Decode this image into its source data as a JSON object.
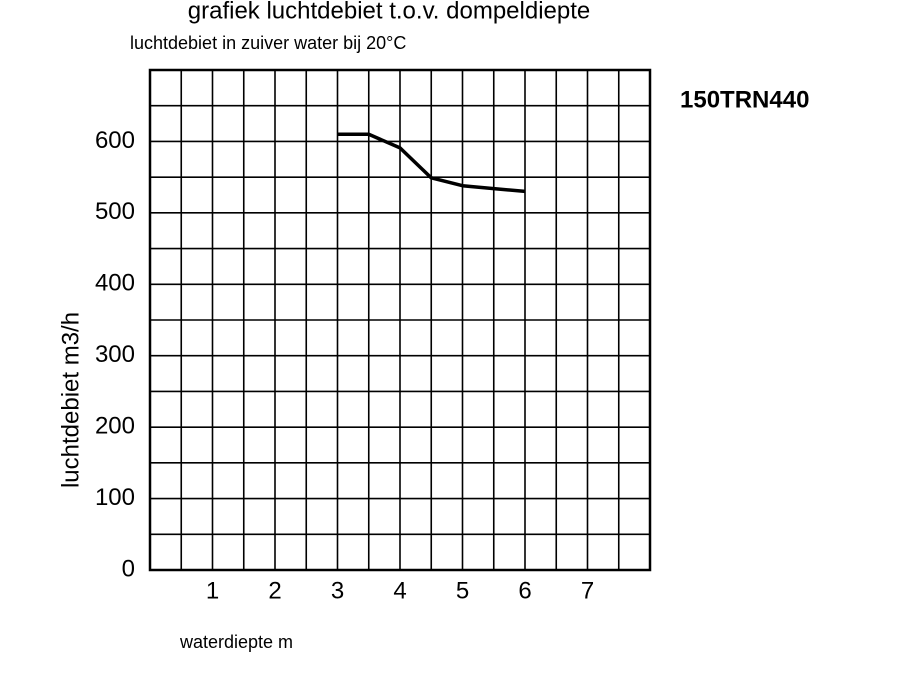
{
  "chart_data": {
    "type": "line",
    "title": "grafiek luchtdebiet t.o.v. dompeldiepte",
    "subtitle": "luchtdebiet in zuiver water bij 20°C",
    "annotation": "150TRN440",
    "xlabel": "waterdiepte m",
    "ylabel": "luchtdebiet m3/h",
    "x": [
      3,
      3.5,
      4,
      4.5,
      5,
      5.5,
      6
    ],
    "series": [
      {
        "name": "150TRN440",
        "color": "#000000",
        "values": [
          610,
          610,
          591,
          549,
          538,
          534,
          530
        ]
      }
    ],
    "xlim": [
      0,
      8
    ],
    "ylim": [
      0,
      700
    ],
    "xticks": [
      1,
      2,
      3,
      4,
      5,
      6,
      7
    ],
    "yticks": [
      0,
      100,
      200,
      300,
      400,
      500,
      600
    ],
    "xgrid": [
      0,
      0.5,
      1,
      1.5,
      2,
      2.5,
      3,
      3.5,
      4,
      4.5,
      5,
      5.5,
      6,
      6.5,
      7,
      7.5,
      8
    ],
    "ygrid": [
      0,
      50,
      100,
      150,
      200,
      250,
      300,
      350,
      400,
      450,
      500,
      550,
      600,
      650,
      700
    ],
    "grid": true
  }
}
